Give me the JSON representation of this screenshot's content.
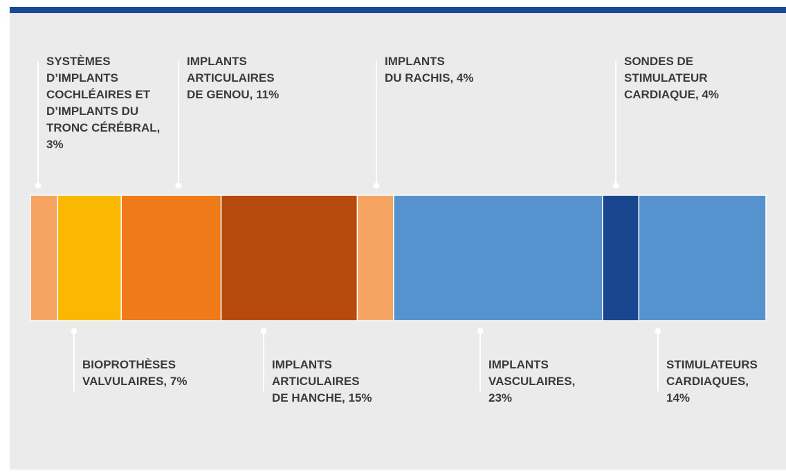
{
  "chart_data": {
    "type": "stacked-bar",
    "values": [
      3,
      7,
      11,
      15,
      4,
      23,
      4,
      14
    ],
    "value_labels": [
      [
        "SYSTÈMES",
        "D’IMPLANTS",
        "COCHLÉAIRES ET",
        "D’IMPLANTS DU",
        "TRONC CÉRÉBRAL,",
        "3%"
      ],
      [
        "BIOPROTHÈSES",
        "VALVULAIRES, 7%"
      ],
      [
        "IMPLANTS",
        "ARTICULAIRES",
        "DE GENOU, 11%"
      ],
      [
        "IMPLANTS",
        "ARTICULAIRES",
        "DE HANCHE, 15%"
      ],
      [
        "IMPLANTS",
        "DU RACHIS, 4%"
      ],
      [
        "IMPLANTS",
        "VASCULAIRES,",
        "23%"
      ],
      [
        "SONDES DE",
        "STIMULATEUR",
        "CARDIAQUE, 4%"
      ],
      [
        "STIMULATEURS",
        "CARDIAQUES,",
        "14%"
      ]
    ],
    "colors": [
      "#f5a462",
      "#fbb800",
      "#ee7a1a",
      "#b5490e",
      "#f5a462",
      "#5592ce",
      "#1a468f",
      "#5592ce"
    ]
  }
}
